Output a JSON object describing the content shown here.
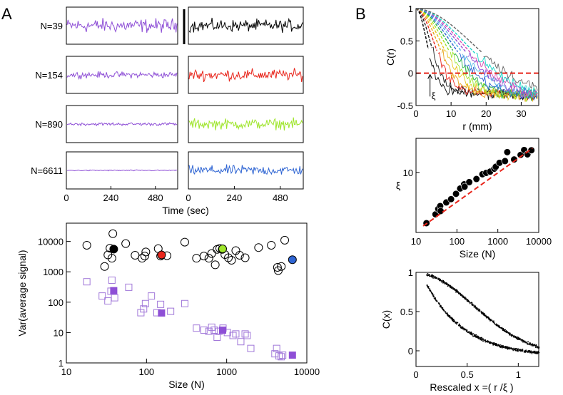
{
  "panel_labels": {
    "a": "A",
    "b": "B"
  },
  "traces": {
    "rows": [
      {
        "label": "N=39",
        "left_amp": 1.0,
        "right_color": "#000000",
        "right_amp": 0.8
      },
      {
        "label": "N=154",
        "left_amp": 0.45,
        "right_color": "#e8251b",
        "right_amp": 0.75
      },
      {
        "label": "N=890",
        "left_amp": 0.22,
        "right_color": "#9ee52a",
        "right_amp": 0.7
      },
      {
        "label": "N=6611",
        "left_amp": 0.08,
        "right_color": "#2f65d3",
        "right_amp": 0.65
      }
    ],
    "left_color": "#8e4fd6",
    "x_ticks": [
      "0",
      "240",
      "480"
    ],
    "x_tick_values": [
      0,
      240,
      480
    ],
    "xmax": 600,
    "xlabel": "Time (sec)"
  },
  "chart_data": [
    {
      "type": "scatter",
      "title": "",
      "xlabel": "Size (N)",
      "ylabel": "Var(average signal)",
      "xscale": "log",
      "yscale": "log",
      "xlim": [
        10,
        10000
      ],
      "ylim": [
        1,
        40000
      ],
      "x_ticks": [
        "10",
        "100",
        "1000",
        "10000"
      ],
      "x_tick_values": [
        10,
        100,
        1000,
        10000
      ],
      "y_ticks": [
        "1",
        "10",
        "100",
        "1000",
        "10000"
      ],
      "y_tick_values": [
        1,
        10,
        100,
        1000,
        10000
      ],
      "series": [
        {
          "name": "original",
          "marker": "circle-open",
          "color": "#000000",
          "points": [
            [
              18,
              7500
            ],
            [
              30,
              1500
            ],
            [
              33,
              3600
            ],
            [
              35,
              6000
            ],
            [
              37,
              2800
            ],
            [
              38,
              18000
            ],
            [
              55,
              8500
            ],
            [
              72,
              3500
            ],
            [
              88,
              2800
            ],
            [
              95,
              3300
            ],
            [
              98,
              4500
            ],
            [
              140,
              5800
            ],
            [
              150,
              3300
            ],
            [
              180,
              3400
            ],
            [
              300,
              9500
            ],
            [
              420,
              2800
            ],
            [
              520,
              3300
            ],
            [
              600,
              2800
            ],
            [
              650,
              4000
            ],
            [
              720,
              1700
            ],
            [
              760,
              5500
            ],
            [
              820,
              5900
            ],
            [
              880,
              5500
            ],
            [
              950,
              3700
            ],
            [
              1050,
              2900
            ],
            [
              1150,
              2400
            ],
            [
              1300,
              5000
            ],
            [
              1450,
              3500
            ],
            [
              1700,
              2900
            ],
            [
              2500,
              6300
            ],
            [
              3600,
              7500
            ],
            [
              4300,
              1400
            ],
            [
              4400,
              1100
            ],
            [
              4800,
              1500
            ],
            [
              5300,
              11000
            ]
          ]
        },
        {
          "name": "randomized",
          "marker": "square-open",
          "color": "#a178d9",
          "points": [
            [
              18,
              470
            ],
            [
              28,
              160
            ],
            [
              33,
              110
            ],
            [
              36,
              230
            ],
            [
              37,
              530
            ],
            [
              40,
              140
            ],
            [
              60,
              310
            ],
            [
              85,
              45
            ],
            [
              92,
              60
            ],
            [
              97,
              90
            ],
            [
              115,
              160
            ],
            [
              150,
              85
            ],
            [
              135,
              45
            ],
            [
              200,
              50
            ],
            [
              300,
              90
            ],
            [
              420,
              14
            ],
            [
              520,
              12
            ],
            [
              600,
              11
            ],
            [
              650,
              15
            ],
            [
              700,
              12
            ],
            [
              760,
              7
            ],
            [
              800,
              11
            ],
            [
              900,
              14
            ],
            [
              1020,
              10
            ],
            [
              1200,
              8
            ],
            [
              1300,
              9
            ],
            [
              1500,
              5
            ],
            [
              1700,
              9
            ],
            [
              1800,
              8
            ],
            [
              2000,
              3
            ],
            [
              4000,
              2
            ],
            [
              4200,
              3
            ],
            [
              4500,
              1.7
            ],
            [
              4800,
              1.6
            ],
            [
              5000,
              1.8
            ]
          ]
        },
        {
          "name": "highlighted",
          "marker": "filled",
          "points": [
            [
              39,
              5600,
              "#000000",
              "circle"
            ],
            [
              154,
              3600,
              "#e8251b",
              "circle"
            ],
            [
              890,
              5700,
              "#9ee52a",
              "circle"
            ],
            [
              6611,
              2500,
              "#2f65d3",
              "circle"
            ],
            [
              39,
              240,
              "#8e4fd6",
              "square"
            ],
            [
              154,
              44,
              "#8e4fd6",
              "square"
            ],
            [
              890,
              12,
              "#8e4fd6",
              "square"
            ],
            [
              6611,
              1.8,
              "#8e4fd6",
              "square"
            ]
          ]
        }
      ]
    },
    {
      "type": "line",
      "title": "",
      "xlabel": "r (mm)",
      "ylabel": "C(r)",
      "xlim": [
        0,
        35
      ],
      "ylim": [
        -0.5,
        1
      ],
      "x_ticks": [
        "0",
        "10",
        "20",
        "30"
      ],
      "x_tick_values": [
        0,
        10,
        20,
        30
      ],
      "y_ticks": [
        "-0.5",
        "0",
        "0.5",
        "1"
      ],
      "y_tick_values": [
        -0.5,
        0,
        0.5,
        1
      ],
      "zero_line_color": "#e8251b",
      "annotation": "ξ",
      "annotation_r": 4,
      "series_colors": [
        "#000000",
        "#222222",
        "#e8251b",
        "#e8a31b",
        "#e8c51b",
        "#9ee52a",
        "#2ab34a",
        "#2f65d3",
        "#4fb3e5",
        "#8e4fd6",
        "#d64fb3",
        "#1bd6c8",
        "#666666"
      ],
      "decay_lengths": [
        3,
        4,
        5,
        6,
        7,
        8,
        9,
        10,
        11,
        12,
        13,
        14,
        16
      ]
    },
    {
      "type": "scatter",
      "title": "",
      "xlabel": "Size (N)",
      "ylabel": "ξ",
      "xscale": "log",
      "yscale": "log",
      "xlim": [
        10,
        10000
      ],
      "ylim": [
        2.5,
        22
      ],
      "x_ticks": [
        "10",
        "100",
        "1000",
        "10000"
      ],
      "x_tick_values": [
        10,
        100,
        1000,
        10000
      ],
      "y_ticks": [
        "10"
      ],
      "y_tick_values": [
        10
      ],
      "fit_color": "#e8251b",
      "points": [
        [
          18,
          3.1
        ],
        [
          30,
          3.8
        ],
        [
          35,
          4.3
        ],
        [
          39,
          4.6
        ],
        [
          40,
          4.1
        ],
        [
          55,
          5.0
        ],
        [
          72,
          5.4
        ],
        [
          95,
          6.1
        ],
        [
          120,
          6.9
        ],
        [
          150,
          7.6
        ],
        [
          154,
          7.2
        ],
        [
          200,
          8.0
        ],
        [
          300,
          8.6
        ],
        [
          420,
          9.6
        ],
        [
          520,
          9.9
        ],
        [
          650,
          10.2
        ],
        [
          820,
          10.9
        ],
        [
          890,
          11.4
        ],
        [
          1100,
          12.5
        ],
        [
          1500,
          13.0
        ],
        [
          1700,
          16.0
        ],
        [
          2500,
          13.5
        ],
        [
          3600,
          15.0
        ],
        [
          4400,
          16.8
        ],
        [
          5300,
          15.2
        ],
        [
          6611,
          16.7
        ]
      ],
      "fit": [
        [
          15,
          2.9
        ],
        [
          7000,
          17.5
        ]
      ]
    },
    {
      "type": "scatter",
      "title": "",
      "xlabel": "Rescaled x =( r /ξ )",
      "ylabel": "C(x)",
      "xlim": [
        0,
        1.2
      ],
      "ylim": [
        -0.2,
        1
      ],
      "x_ticks": [
        "0",
        "0.5",
        "1"
      ],
      "x_tick_values": [
        0,
        0.5,
        1
      ],
      "y_ticks": [
        "0",
        "0.5",
        "1"
      ],
      "y_tick_values": [
        0,
        0.5,
        1
      ]
    }
  ]
}
